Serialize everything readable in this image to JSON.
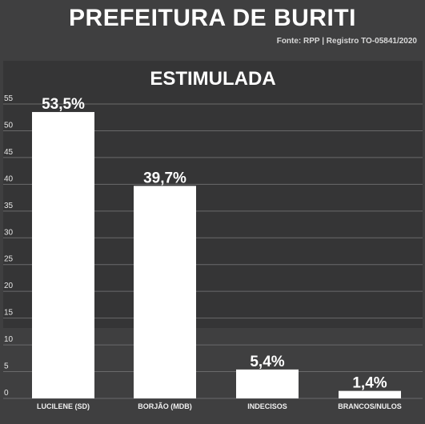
{
  "header": {
    "title": "PREFEITURA DE BURITI",
    "source": "Fonte: RPP | Registro TO-05841/2020"
  },
  "chart_data": {
    "type": "bar",
    "title": "ESTIMULADA",
    "categories": [
      "LUCILENE (SD)",
      "BORJÃO (MDB)",
      "INDECISOS",
      "BRANCOS/NULOS"
    ],
    "values": [
      53.5,
      39.7,
      5.4,
      1.4
    ],
    "value_labels": [
      "53,5%",
      "39,7%",
      "5,4%",
      "1,4%"
    ],
    "yticks": [
      0,
      5,
      10,
      15,
      20,
      25,
      30,
      35,
      40,
      45,
      50,
      55
    ],
    "ylim": [
      0,
      55
    ],
    "grid": true,
    "bar_color": "#ffffff",
    "grid_color": "#6a6a6b",
    "text_color": "#ffffff"
  }
}
